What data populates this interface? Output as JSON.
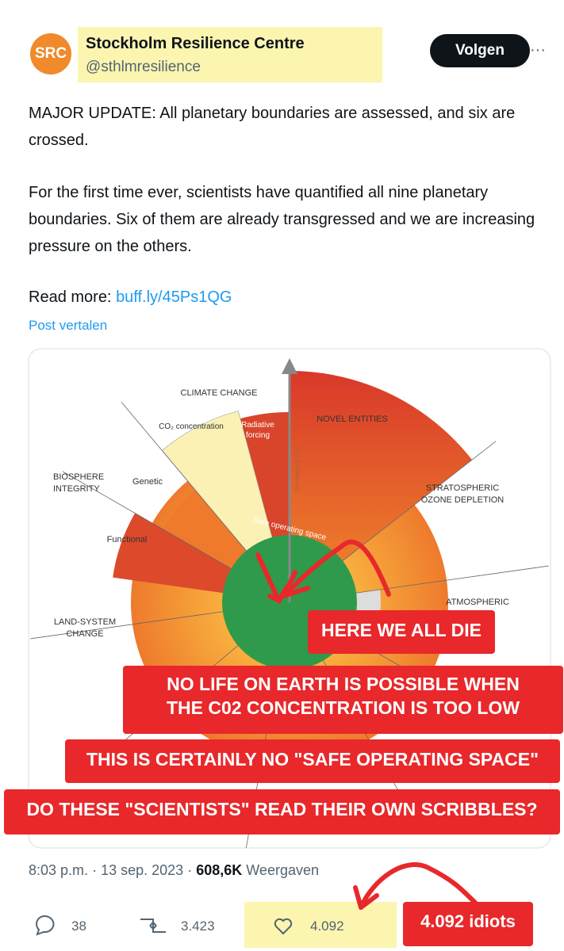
{
  "author": {
    "avatar": "SRC",
    "name": "Stockholm Resilience Centre",
    "handle": "@sthlmresilience"
  },
  "follow_button": "Volgen",
  "more": "···",
  "text": {
    "paragraphs": [
      "MAJOR UPDATE: All planetary boundaries are assessed, and six are crossed.",
      "For the first time ever, scientists have quantified all nine planetary boundaries. Six of them are already transgressed and we are increasing pressure on the others."
    ],
    "read_more": "Read more:",
    "link": "buff.ly/45Ps1QG"
  },
  "translate": "Post vertalen",
  "diagram": {
    "labels": [
      "CLIMATE CHANGE",
      "CO₂ concentration",
      "Radiative forcing",
      "NOVEL ENTITIES",
      "BIOSPHERE INTEGRITY",
      "Genetic",
      "Functional",
      "STRATOSPHERIC OZONE DEPLETION",
      "LAND-SYSTEM CHANGE",
      "ATMOSPHERIC"
    ],
    "center_label": "Safe operating space",
    "axis_label": "Increasing risk"
  },
  "annotations": [
    "HERE WE ALL DIE",
    "NO LIFE ON EARTH IS POSSIBLE WHEN THE C02 CONCENTRATION IS TOO LOW",
    "THIS IS CERTAINLY NO \"SAFE OPERATING SPACE\"",
    "DO THESE \"SCIENTISTS\" READ THEIR OWN SCRIBBLES?",
    "4.092 idiots"
  ],
  "meta": {
    "time": "8:03 p.m.",
    "separator": "·",
    "date": "13 sep. 2023",
    "views": "608,6K",
    "views_label": "Weergaven"
  },
  "actions": {
    "replies": "38",
    "reposts": "3.423",
    "likes": "4.092"
  }
}
